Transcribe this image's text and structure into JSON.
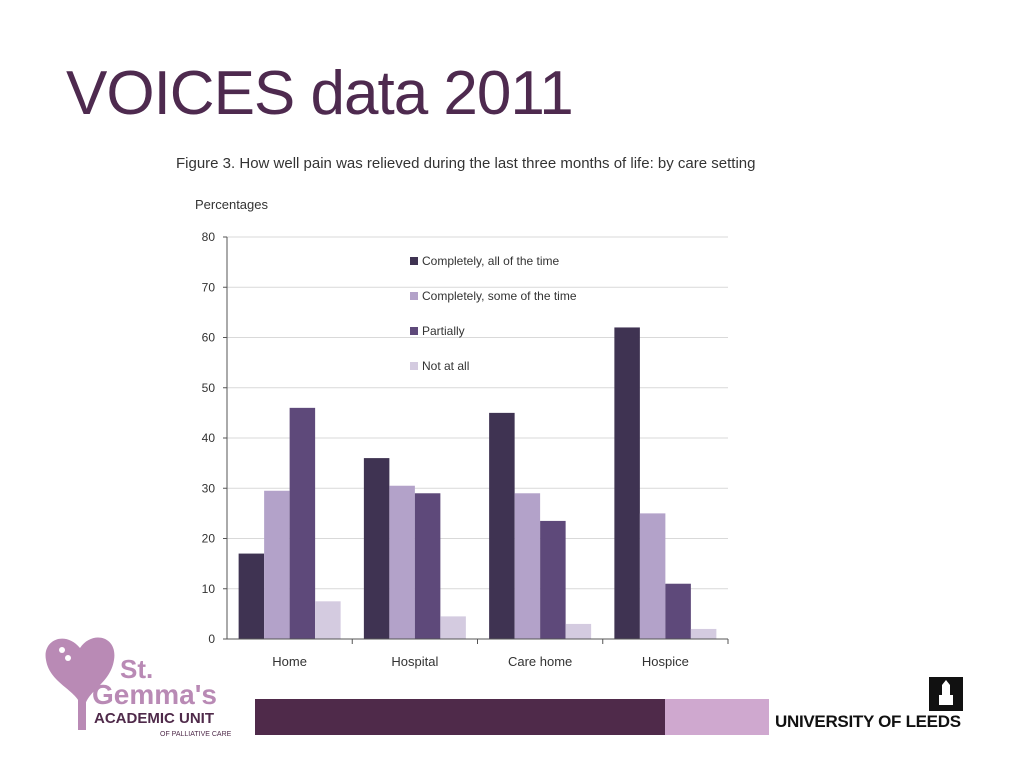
{
  "slide": {
    "title": "VOICES data 2011"
  },
  "chart_data": {
    "type": "bar",
    "title": "Figure 3. How well pain was relieved during the last three months of life: by care setting",
    "ylabel": "Percentages",
    "xlabel": "",
    "ylim": [
      0,
      80
    ],
    "yticks": [
      0,
      10,
      20,
      30,
      40,
      50,
      60,
      70,
      80
    ],
    "grid": true,
    "legend_position": "top-center",
    "categories": [
      "Home",
      "Hospital",
      "Care home",
      "Hospice"
    ],
    "series": [
      {
        "name": "Completely, all of the time",
        "color": "#3f3352",
        "values": [
          17,
          36,
          45,
          62
        ]
      },
      {
        "name": "Completely, some of the time",
        "color": "#b3a2c9",
        "values": [
          29.5,
          30.5,
          29,
          25
        ]
      },
      {
        "name": "Partially",
        "color": "#5e497a",
        "values": [
          46,
          29,
          23.5,
          11
        ]
      },
      {
        "name": "Not at all",
        "color": "#d4cbe0",
        "values": [
          7.5,
          4.5,
          3,
          2
        ]
      }
    ]
  },
  "footer": {
    "stgemma_line1": "St.",
    "stgemma_line2": "Gemma's",
    "stgemma_line3": "ACADEMIC UNIT",
    "stgemma_line4": "OF PALLIATIVE CARE",
    "university": "UNIVERSITY OF LEEDS",
    "brand_dark": "#4f2a4a",
    "brand_light": "#cfa8cf"
  }
}
